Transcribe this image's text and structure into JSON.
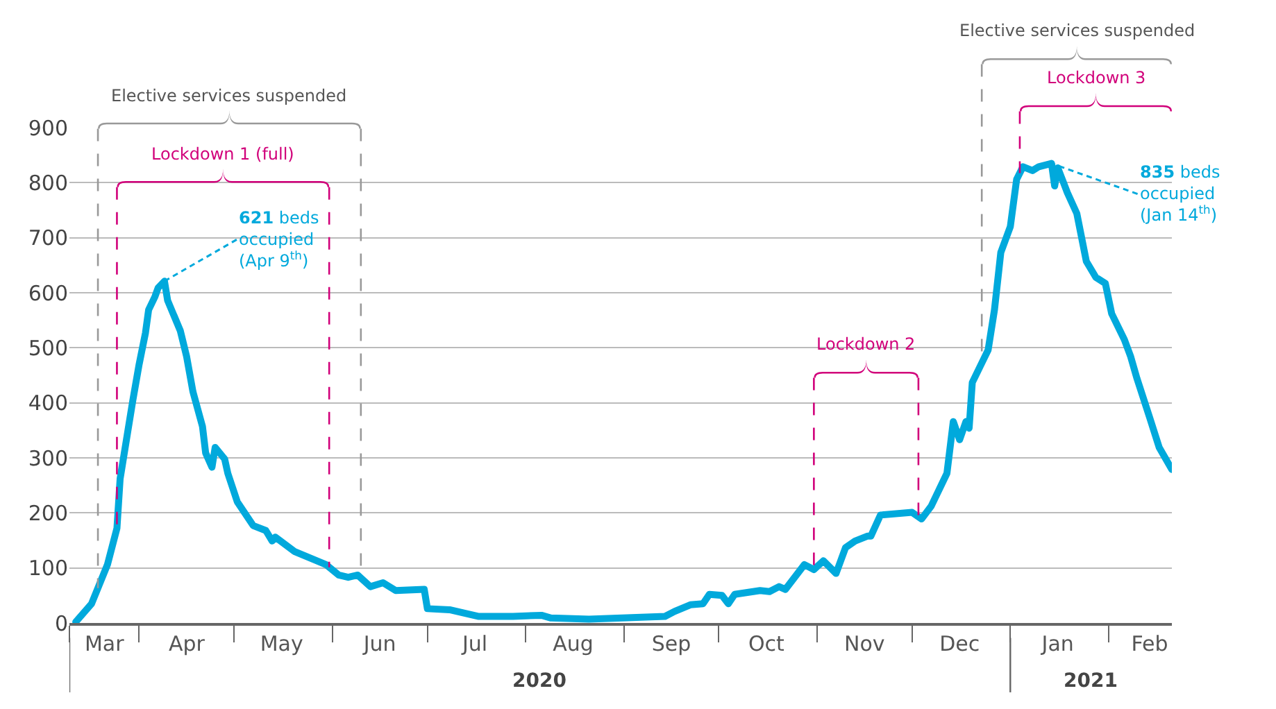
{
  "chart_data": {
    "type": "line",
    "x": [
      "2020-03-12",
      "2020-03-17",
      "2020-03-22",
      "2020-03-25",
      "2020-03-26",
      "2020-03-28",
      "2020-03-30",
      "2020-04-01",
      "2020-04-03",
      "2020-04-04",
      "2020-04-06",
      "2020-04-07",
      "2020-04-09",
      "2020-04-10",
      "2020-04-14",
      "2020-04-16",
      "2020-04-18",
      "2020-04-21",
      "2020-04-22",
      "2020-04-24",
      "2020-04-25",
      "2020-04-28",
      "2020-04-29",
      "2020-05-02",
      "2020-05-07",
      "2020-05-11",
      "2020-05-13",
      "2020-05-14",
      "2020-05-20",
      "2020-05-25",
      "2020-05-30",
      "2020-06-03",
      "2020-06-06",
      "2020-06-09",
      "2020-06-13",
      "2020-06-17",
      "2020-06-21",
      "2020-06-30",
      "2020-07-01",
      "2020-07-08",
      "2020-07-17",
      "2020-07-28",
      "2020-08-06",
      "2020-08-09",
      "2020-08-21",
      "2020-09-14",
      "2020-09-17",
      "2020-09-22",
      "2020-09-26",
      "2020-09-28",
      "2020-10-02",
      "2020-10-04",
      "2020-10-06",
      "2020-10-14",
      "2020-10-17",
      "2020-10-20",
      "2020-10-22",
      "2020-10-28",
      "2020-10-31",
      "2020-11-03",
      "2020-11-07",
      "2020-11-10",
      "2020-11-13",
      "2020-11-17",
      "2020-11-18",
      "2020-11-21",
      "2020-12-01",
      "2020-12-04",
      "2020-12-07",
      "2020-12-12",
      "2020-12-14",
      "2020-12-16",
      "2020-12-18",
      "2020-12-19",
      "2020-12-20",
      "2020-12-25",
      "2020-12-27",
      "2020-12-29",
      "2021-01-01",
      "2021-01-03",
      "2021-01-05",
      "2021-01-08",
      "2021-01-10",
      "2021-01-14",
      "2021-01-15",
      "2021-01-16",
      "2021-01-19",
      "2021-01-22",
      "2021-01-25",
      "2021-01-28",
      "2021-01-31",
      "2021-02-02",
      "2021-02-06",
      "2021-02-08",
      "2021-02-10",
      "2021-02-14",
      "2021-02-17",
      "2021-02-21"
    ],
    "series": [
      {
        "color": "#00a9dc",
        "values": [
          2,
          35,
          106,
          172,
          262,
          333,
          404,
          470,
          527,
          569,
          593,
          609,
          621,
          586,
          531,
          484,
          420,
          357,
          309,
          283,
          319,
          298,
          272,
          220,
          177,
          168,
          149,
          156,
          130,
          118,
          106,
          87,
          83,
          87,
          66,
          73,
          59,
          61,
          26,
          24,
          12,
          12,
          14,
          9,
          7,
          12,
          21,
          33,
          35,
          52,
          50,
          35,
          52,
          59,
          57,
          66,
          61,
          106,
          97,
          113,
          90,
          137,
          149,
          158,
          158,
          196,
          201,
          189,
          212,
          272,
          366,
          333,
          366,
          354,
          437,
          496,
          569,
          673,
          720,
          806,
          829,
          822,
          829,
          835,
          794,
          827,
          782,
          744,
          657,
          628,
          617,
          562,
          515,
          484,
          444,
          373,
          319,
          279
        ]
      }
    ],
    "xlim": [
      "2020-03-10",
      "2021-02-21"
    ],
    "xticks": [
      {
        "value": "2020-03-10",
        "label": null
      },
      {
        "value": "2020-03-21",
        "label": "Mar"
      },
      {
        "value": "2020-04-01",
        "label": null
      },
      {
        "value": "2020-04-16",
        "label": "Apr"
      },
      {
        "value": "2020-05-01",
        "label": null
      },
      {
        "value": "2020-05-16",
        "label": "May"
      },
      {
        "value": "2020-06-01",
        "label": null
      },
      {
        "value": "2020-06-16",
        "label": "Jun"
      },
      {
        "value": "2020-07-01",
        "label": null
      },
      {
        "value": "2020-07-16",
        "label": "Jul"
      },
      {
        "value": "2020-08-01",
        "label": null
      },
      {
        "value": "2020-08-16",
        "label": "Aug"
      },
      {
        "value": "2020-09-01",
        "label": null
      },
      {
        "value": "2020-09-16",
        "label": "Sep"
      },
      {
        "value": "2020-10-01",
        "label": null
      },
      {
        "value": "2020-10-16",
        "label": "Oct"
      },
      {
        "value": "2020-11-01",
        "label": null
      },
      {
        "value": "2020-11-16",
        "label": "Nov"
      },
      {
        "value": "2020-12-01",
        "label": null
      },
      {
        "value": "2020-12-16",
        "label": "Dec"
      },
      {
        "value": "2021-01-01",
        "label": null
      },
      {
        "value": "2021-01-16",
        "label": "Jan"
      },
      {
        "value": "2021-02-01",
        "label": null
      },
      {
        "value": "2021-02-14",
        "label": "Feb"
      }
    ],
    "ylim": [
      0,
      900
    ],
    "yticks": [
      0,
      100,
      200,
      300,
      400,
      500,
      600,
      700,
      800,
      900
    ],
    "grid": "y",
    "marker": "none",
    "line_style": "solid",
    "ref_lines": [
      {
        "axis": "x",
        "value": "2020-03-19",
        "label": "Elective services suspended",
        "color": "#999999",
        "line_style": "dashed"
      },
      {
        "axis": "x",
        "value": "2020-06-10",
        "label": null,
        "color": "#999999",
        "line_style": "dashed"
      },
      {
        "axis": "x",
        "value": "2020-03-25",
        "label": "Lockdown 1 (full)",
        "color": "#d1007a",
        "line_style": "dashed"
      },
      {
        "axis": "x",
        "value": "2020-05-31",
        "label": null,
        "color": "#d1007a",
        "line_style": "dashed"
      },
      {
        "axis": "x",
        "value": "2020-10-31",
        "label": "Lockdown 2",
        "color": "#d1007a",
        "line_style": "dashed"
      },
      {
        "axis": "x",
        "value": "2020-12-03",
        "label": null,
        "color": "#d1007a",
        "line_style": "dashed"
      },
      {
        "axis": "x",
        "value": "2020-12-23",
        "label": "Elective services suspended",
        "color": "#999999",
        "line_style": "dashed"
      },
      {
        "axis": "x",
        "value": "2021-01-04",
        "label": "Lockdown 3",
        "color": "#d1007a",
        "line_style": "dashed"
      }
    ],
    "annotations": [
      {
        "text": "621 beds\noccupied\n(Apr 9$^{th}$)",
        "x": "2020-04-09",
        "y": 621
      },
      {
        "text": "835 beds\noccupied\n(Jan 14$^{th}$)",
        "x": "2021-01-14",
        "y": 835
      },
      "2020",
      "2021"
    ]
  }
}
